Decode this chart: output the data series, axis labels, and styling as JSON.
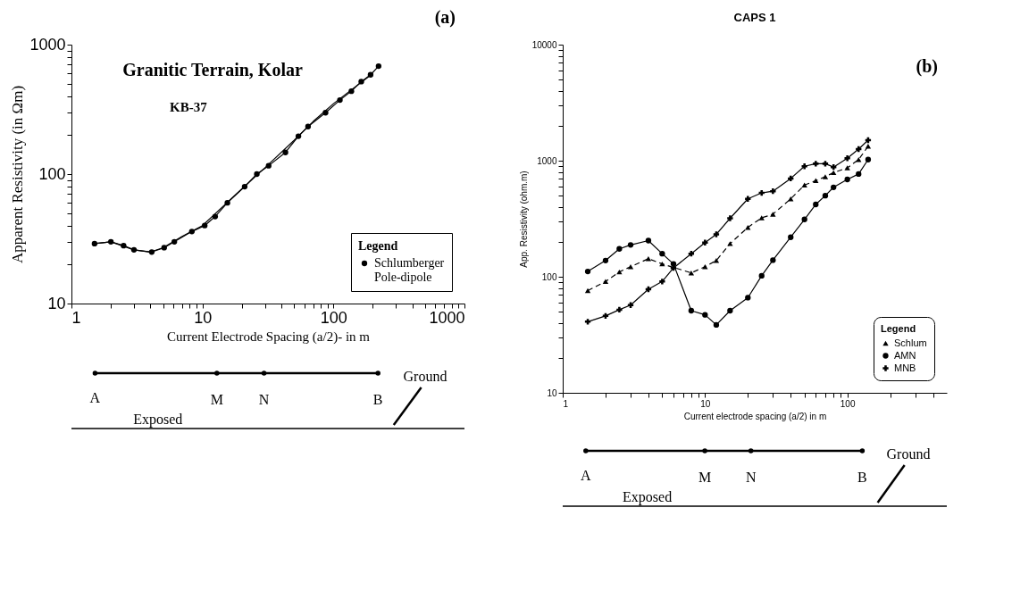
{
  "chart_data": [
    {
      "type": "line",
      "title": "Granitic Terrain, Kolar",
      "subtitle": "KB-37",
      "xlabel": "Current Electrode Spacing (a/2)- in m",
      "ylabel": "Apparent Resistivity (in Ωm)",
      "legend_title": "Legend",
      "legend": "bottom right",
      "log": "xy",
      "grid": false,
      "xlim": [
        1,
        1000
      ],
      "ylim": [
        10,
        1000
      ],
      "xticks": [
        1,
        {
          "value": 2,
          "label": null
        },
        {
          "value": 3,
          "label": null
        },
        {
          "value": 4,
          "label": null
        },
        {
          "value": 5,
          "label": null
        },
        {
          "value": 6,
          "label": null
        },
        {
          "value": 7,
          "label": null
        },
        {
          "value": 8,
          "label": null
        },
        {
          "value": 9,
          "label": null
        },
        10,
        {
          "value": 20,
          "label": null
        },
        {
          "value": 30,
          "label": null
        },
        {
          "value": 40,
          "label": null
        },
        {
          "value": 50,
          "label": null
        },
        {
          "value": 60,
          "label": null
        },
        {
          "value": 70,
          "label": null
        },
        {
          "value": 80,
          "label": null
        },
        {
          "value": 90,
          "label": null
        },
        100,
        {
          "value": 200,
          "label": null
        },
        {
          "value": 300,
          "label": null
        },
        {
          "value": 400,
          "label": null
        },
        {
          "value": 500,
          "label": null
        },
        {
          "value": 600,
          "label": null
        },
        {
          "value": 700,
          "label": null
        },
        {
          "value": 800,
          "label": null
        },
        {
          "value": 900,
          "label": null
        },
        1000
      ],
      "yticks": [
        10,
        {
          "value": 20,
          "label": null
        },
        {
          "value": 30,
          "label": null
        },
        {
          "value": 40,
          "label": null
        },
        {
          "value": 50,
          "label": null
        },
        {
          "value": 60,
          "label": null
        },
        {
          "value": 70,
          "label": null
        },
        {
          "value": 80,
          "label": null
        },
        {
          "value": 90,
          "label": null
        },
        100,
        {
          "value": 200,
          "label": null
        },
        {
          "value": 300,
          "label": null
        },
        {
          "value": 400,
          "label": null
        },
        {
          "value": 500,
          "label": null
        },
        {
          "value": 600,
          "label": null
        },
        {
          "value": 700,
          "label": null
        },
        {
          "value": 800,
          "label": null
        },
        {
          "value": 900,
          "label": null
        },
        1000
      ],
      "x": [
        1.5,
        2,
        2.5,
        3,
        4.1,
        5.1,
        6.1,
        8.3,
        10.4,
        12.5,
        15.5,
        21,
        26,
        32,
        43,
        54,
        64,
        87,
        112,
        137,
        163,
        192,
        221
      ],
      "series": [
        {
          "name": "Schlumberger",
          "color": "#000000",
          "marker": "circle",
          "line_style": "solid",
          "values": [
            29,
            30,
            28,
            26,
            25,
            27,
            30,
            36,
            40,
            47,
            60,
            80,
            100,
            116,
            147,
            196,
            233,
            298,
            373,
            437,
            518,
            585,
            682
          ]
        },
        {
          "name": "Pole-dipole",
          "color": "#000000",
          "marker": "none",
          "line_style": "solid",
          "x": [
            1.5,
            2,
            3,
            4,
            5,
            7,
            10,
            14,
            20,
            30,
            50,
            70,
            100,
            150,
            200
          ],
          "values": [
            29,
            30,
            26,
            25,
            27,
            33,
            40,
            55,
            77,
            112,
            182,
            255,
            350,
            480,
            600
          ]
        }
      ],
      "annotations": [
        "(a)",
        "A",
        "M",
        "N",
        "B",
        "Ground",
        "Exposed"
      ]
    },
    {
      "type": "line",
      "title": "CAPS 1",
      "xlabel": "Current electrode spacing (a/2) in m",
      "ylabel": "App. Resistivity (ohm.m)",
      "legend_title": "Legend",
      "legend": "bottom right",
      "log": "xy",
      "grid": false,
      "xlim": [
        1,
        500
      ],
      "ylim": [
        10,
        10000
      ],
      "xticks": [
        1,
        {
          "value": 2,
          "label": null
        },
        {
          "value": 3,
          "label": null
        },
        {
          "value": 4,
          "label": null
        },
        {
          "value": 5,
          "label": null
        },
        {
          "value": 6,
          "label": null
        },
        {
          "value": 7,
          "label": null
        },
        {
          "value": 8,
          "label": null
        },
        {
          "value": 9,
          "label": null
        },
        10,
        {
          "value": 20,
          "label": null
        },
        {
          "value": 30,
          "label": null
        },
        {
          "value": 40,
          "label": null
        },
        {
          "value": 50,
          "label": null
        },
        {
          "value": 60,
          "label": null
        },
        {
          "value": 70,
          "label": null
        },
        {
          "value": 80,
          "label": null
        },
        {
          "value": 90,
          "label": null
        },
        100,
        {
          "value": 200,
          "label": null
        },
        {
          "value": 300,
          "label": null
        },
        {
          "value": 400,
          "label": null
        }
      ],
      "yticks": [
        10,
        {
          "value": 20,
          "label": null
        },
        {
          "value": 30,
          "label": null
        },
        {
          "value": 40,
          "label": null
        },
        {
          "value": 50,
          "label": null
        },
        {
          "value": 60,
          "label": null
        },
        {
          "value": 70,
          "label": null
        },
        {
          "value": 80,
          "label": null
        },
        {
          "value": 90,
          "label": null
        },
        100,
        {
          "value": 200,
          "label": null
        },
        {
          "value": 300,
          "label": null
        },
        {
          "value": 400,
          "label": null
        },
        {
          "value": 500,
          "label": null
        },
        {
          "value": 600,
          "label": null
        },
        {
          "value": 700,
          "label": null
        },
        {
          "value": 800,
          "label": null
        },
        {
          "value": 900,
          "label": null
        },
        1000,
        {
          "value": 2000,
          "label": null
        },
        {
          "value": 3000,
          "label": null
        },
        {
          "value": 4000,
          "label": null
        },
        {
          "value": 5000,
          "label": null
        },
        {
          "value": 6000,
          "label": null
        },
        {
          "value": 7000,
          "label": null
        },
        {
          "value": 8000,
          "label": null
        },
        {
          "value": 9000,
          "label": null
        },
        10000
      ],
      "x": [
        1.5,
        2,
        2.5,
        3,
        4,
        5,
        6,
        8,
        10,
        12,
        15,
        20,
        25,
        30,
        40,
        50,
        60,
        70,
        80,
        100,
        120,
        140
      ],
      "series": [
        {
          "name": "Schlum",
          "color": "#000000",
          "marker": "triangle",
          "line_style": "dashed",
          "values": [
            76,
            91,
            110,
            122,
            143,
            129,
            null,
            108,
            122,
            138,
            193,
            266,
            322,
            346,
            469,
            617,
            673,
            728,
            789,
            867,
            1023,
            1331
          ]
        },
        {
          "name": "AMN",
          "color": "#000000",
          "marker": "circle",
          "line_style": "solid",
          "values": [
            111,
            138,
            174,
            188,
            205,
            158,
            129,
            51,
            47,
            38.5,
            51,
            66,
            102,
            139,
            219,
            312,
            420,
            500,
            590,
            689,
            768,
            1023
          ]
        },
        {
          "name": "MNB",
          "color": "#000000",
          "marker": "cross",
          "line_style": "solid",
          "values": [
            41,
            46,
            52,
            57,
            78,
            91,
            119,
            158,
            197,
            232,
            319,
            469,
            528,
            546,
            703,
            895,
            942,
            942,
            881,
            1050,
            1259,
            1503
          ]
        }
      ],
      "annotations": [
        "(b)",
        "A",
        "M",
        "N",
        "B",
        "Ground",
        "Exposed"
      ]
    }
  ]
}
